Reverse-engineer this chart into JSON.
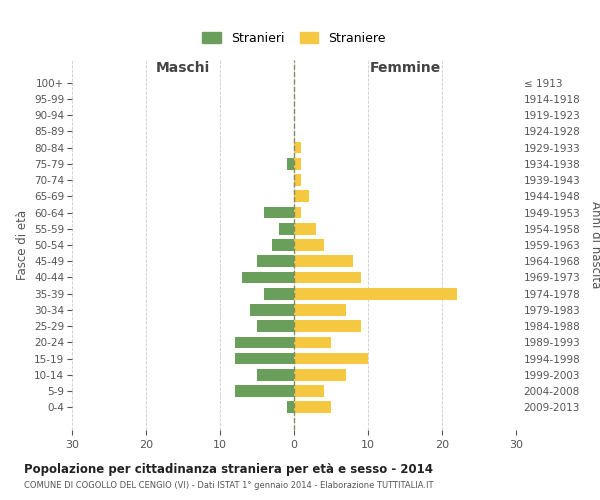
{
  "age_groups": [
    "100+",
    "95-99",
    "90-94",
    "85-89",
    "80-84",
    "75-79",
    "70-74",
    "65-69",
    "60-64",
    "55-59",
    "50-54",
    "45-49",
    "40-44",
    "35-39",
    "30-34",
    "25-29",
    "20-24",
    "15-19",
    "10-14",
    "5-9",
    "0-4"
  ],
  "birth_years": [
    "≤ 1913",
    "1914-1918",
    "1919-1923",
    "1924-1928",
    "1929-1933",
    "1934-1938",
    "1939-1943",
    "1944-1948",
    "1949-1953",
    "1954-1958",
    "1959-1963",
    "1964-1968",
    "1969-1973",
    "1974-1978",
    "1979-1983",
    "1984-1988",
    "1989-1993",
    "1994-1998",
    "1999-2003",
    "2004-2008",
    "2009-2013"
  ],
  "maschi": [
    0,
    0,
    0,
    0,
    0,
    1,
    0,
    0,
    4,
    2,
    3,
    5,
    7,
    4,
    6,
    5,
    8,
    8,
    5,
    8,
    1
  ],
  "femmine": [
    0,
    0,
    0,
    0,
    1,
    1,
    1,
    2,
    1,
    3,
    4,
    8,
    9,
    22,
    7,
    9,
    5,
    10,
    7,
    4,
    5
  ],
  "color_maschi": "#6a9f5b",
  "color_femmine": "#f5c842",
  "legend_maschi": "Stranieri",
  "legend_femmine": "Straniere",
  "xlabel_left": "Maschi",
  "xlabel_right": "Femmine",
  "ylabel_left": "Fasce di età",
  "ylabel_right": "Anni di nascita",
  "title": "Popolazione per cittadinanza straniera per età e sesso - 2014",
  "subtitle": "COMUNE DI COGOLLO DEL CENGIO (VI) - Dati ISTAT 1° gennaio 2014 - Elaborazione TUTTITALIA.IT",
  "xlim": 30,
  "bg_color": "#ffffff",
  "grid_color": "#cccccc"
}
